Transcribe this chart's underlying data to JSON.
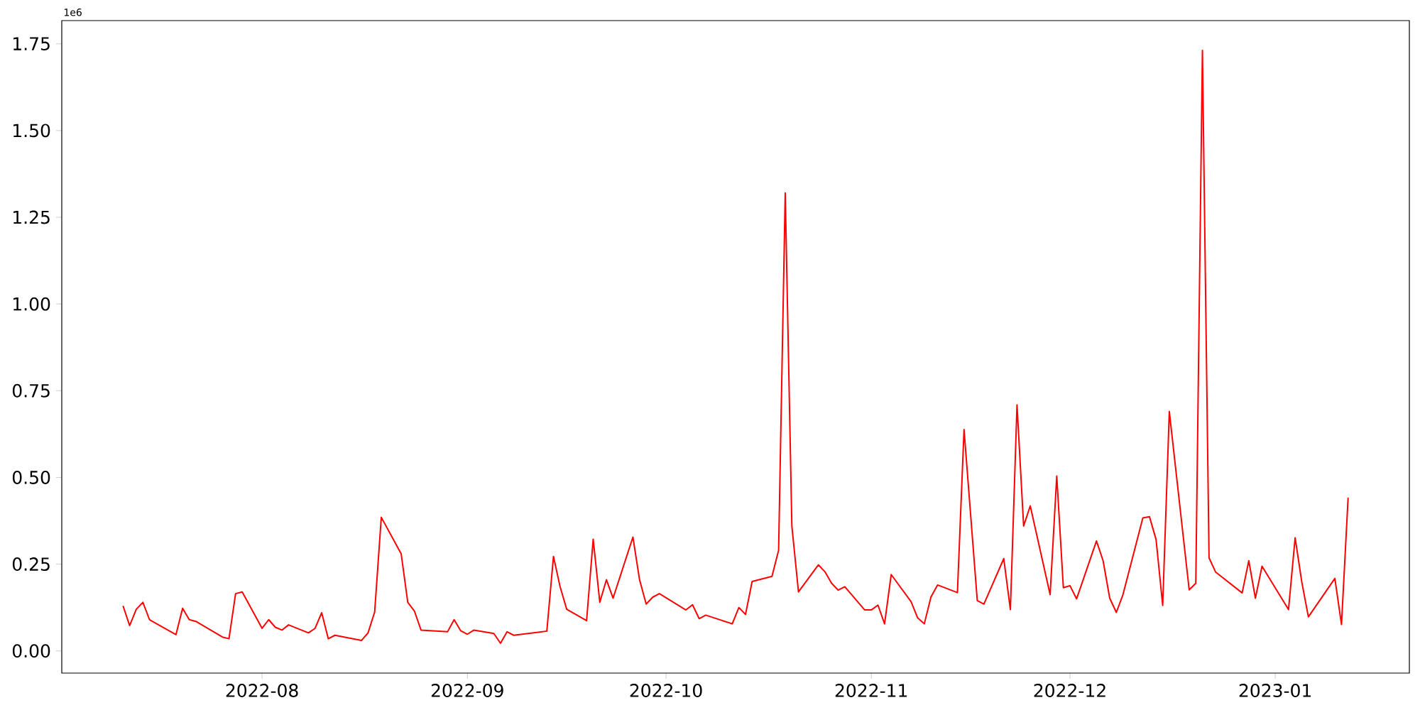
{
  "chart_data": {
    "type": "line",
    "x": [
      "2022-07-11",
      "2022-07-12",
      "2022-07-13",
      "2022-07-14",
      "2022-07-15",
      "2022-07-19",
      "2022-07-20",
      "2022-07-21",
      "2022-07-22",
      "2022-07-26",
      "2022-07-27",
      "2022-07-28",
      "2022-07-29",
      "2022-08-01",
      "2022-08-02",
      "2022-08-03",
      "2022-08-04",
      "2022-08-05",
      "2022-08-08",
      "2022-08-09",
      "2022-08-10",
      "2022-08-11",
      "2022-08-12",
      "2022-08-16",
      "2022-08-17",
      "2022-08-18",
      "2022-08-19",
      "2022-08-22",
      "2022-08-23",
      "2022-08-24",
      "2022-08-25",
      "2022-08-29",
      "2022-08-30",
      "2022-08-31",
      "2022-09-01",
      "2022-09-02",
      "2022-09-05",
      "2022-09-06",
      "2022-09-07",
      "2022-09-08",
      "2022-09-13",
      "2022-09-14",
      "2022-09-15",
      "2022-09-16",
      "2022-09-19",
      "2022-09-20",
      "2022-09-21",
      "2022-09-22",
      "2022-09-23",
      "2022-09-26",
      "2022-09-27",
      "2022-09-28",
      "2022-09-29",
      "2022-09-30",
      "2022-10-04",
      "2022-10-05",
      "2022-10-06",
      "2022-10-07",
      "2022-10-11",
      "2022-10-12",
      "2022-10-13",
      "2022-10-14",
      "2022-10-17",
      "2022-10-18",
      "2022-10-19",
      "2022-10-20",
      "2022-10-21",
      "2022-10-24",
      "2022-10-25",
      "2022-10-26",
      "2022-10-27",
      "2022-10-28",
      "2022-10-31",
      "2022-11-01",
      "2022-11-02",
      "2022-11-03",
      "2022-11-04",
      "2022-11-07",
      "2022-11-08",
      "2022-11-09",
      "2022-11-10",
      "2022-11-11",
      "2022-11-14",
      "2022-11-15",
      "2022-11-17",
      "2022-11-18",
      "2022-11-21",
      "2022-11-22",
      "2022-11-23",
      "2022-11-24",
      "2022-11-25",
      "2022-11-28",
      "2022-11-29",
      "2022-11-30",
      "2022-12-01",
      "2022-12-02",
      "2022-12-05",
      "2022-12-06",
      "2022-12-07",
      "2022-12-08",
      "2022-12-09",
      "2022-12-12",
      "2022-12-13",
      "2022-12-14",
      "2022-12-15",
      "2022-12-16",
      "2022-12-19",
      "2022-12-20",
      "2022-12-21",
      "2022-12-22",
      "2022-12-23",
      "2022-12-27",
      "2022-12-28",
      "2022-12-29",
      "2022-12-30",
      "2023-01-03",
      "2023-01-04",
      "2023-01-05",
      "2023-01-06",
      "2023-01-10",
      "2023-01-11",
      "2023-01-12"
    ],
    "series": [
      {
        "color": "#ff0000",
        "values": [
          0.13,
          0.073,
          0.12,
          0.14,
          0.09,
          0.047,
          0.123,
          0.09,
          0.085,
          0.04,
          0.035,
          0.165,
          0.17,
          0.065,
          0.09,
          0.068,
          0.06,
          0.075,
          0.052,
          0.065,
          0.11,
          0.035,
          0.045,
          0.03,
          0.052,
          0.112,
          0.385,
          0.28,
          0.14,
          0.115,
          0.06,
          0.055,
          0.09,
          0.058,
          0.048,
          0.06,
          0.05,
          0.022,
          0.055,
          0.045,
          0.057,
          0.272,
          0.185,
          0.12,
          0.087,
          0.322,
          0.14,
          0.205,
          0.152,
          0.328,
          0.205,
          0.135,
          0.155,
          0.165,
          0.118,
          0.133,
          0.093,
          0.103,
          0.078,
          0.125,
          0.105,
          0.2,
          0.215,
          0.29,
          1.32,
          0.36,
          0.17,
          0.248,
          0.228,
          0.195,
          0.175,
          0.185,
          0.118,
          0.118,
          0.132,
          0.078,
          0.22,
          0.142,
          0.095,
          0.078,
          0.155,
          0.19,
          0.168,
          0.638,
          0.145,
          0.135,
          0.266,
          0.119,
          0.709,
          0.36,
          0.418,
          0.162,
          0.504,
          0.182,
          0.188,
          0.15,
          0.317,
          0.26,
          0.152,
          0.111,
          0.162,
          0.383,
          0.387,
          0.321,
          0.131,
          0.69,
          0.176,
          0.195,
          1.731,
          0.268,
          0.227,
          0.167,
          0.26,
          0.152,
          0.244,
          0.119,
          0.326,
          0.199,
          0.098,
          0.209,
          0.076,
          0.442
        ]
      }
    ],
    "xlim": [
      "2022-07-01T18:00",
      "2023-01-21T06:00"
    ],
    "xticks": [
      {
        "value": "2022-08-01",
        "label": "2022-08"
      },
      {
        "value": "2022-09-01",
        "label": "2022-09"
      },
      {
        "value": "2022-10-01",
        "label": "2022-10"
      },
      {
        "value": "2022-11-01",
        "label": "2022-11"
      },
      {
        "value": "2022-12-01",
        "label": "2022-12"
      },
      {
        "value": "2023-01-01",
        "label": "2023-01"
      }
    ],
    "ylim": [
      -0.064,
      1.817
    ],
    "yticks": [
      {
        "value": 0,
        "label": "0.00"
      },
      0.25,
      {
        "value": 0.5,
        "label": "0.50"
      },
      0.75,
      {
        "value": 1,
        "label": "1.00"
      },
      1.25,
      {
        "value": 1.5,
        "label": "1.50"
      },
      1.75
    ],
    "annotations": [
      "1e6"
    ]
  }
}
